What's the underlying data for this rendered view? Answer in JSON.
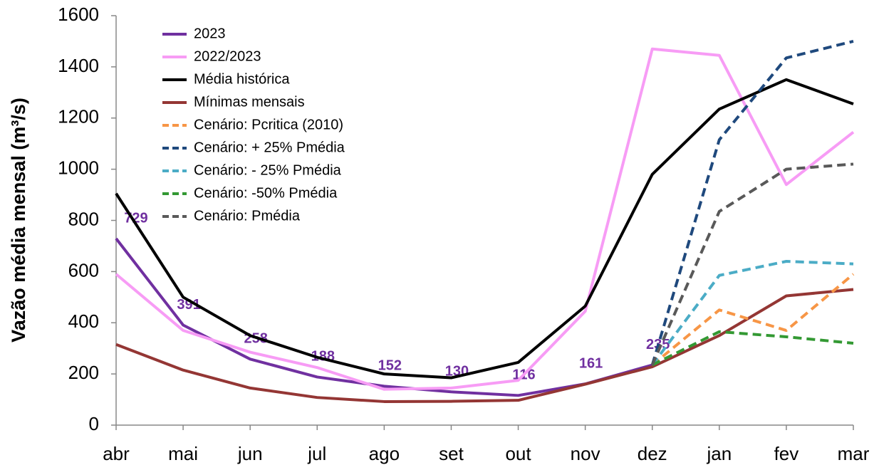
{
  "chart_data": {
    "type": "line",
    "y_label": "Vazão média mensal (m³/s)",
    "categories": [
      "abr",
      "mai",
      "jun",
      "jul",
      "ago",
      "set",
      "out",
      "nov",
      "dez",
      "jan",
      "fev",
      "mar"
    ],
    "ylim": [
      0,
      1600
    ],
    "yticks": [
      0,
      200,
      400,
      600,
      800,
      1000,
      1200,
      1400,
      1600
    ],
    "grid": false,
    "legend": "top-left",
    "series": [
      {
        "name": "2023",
        "color": "#7030a0",
        "style": "solid",
        "data_labels": true,
        "values": [
          729,
          391,
          258,
          188,
          152,
          130,
          116,
          161,
          235,
          null,
          null,
          null
        ]
      },
      {
        "name": "2022/2023",
        "color": "#f79cf5",
        "style": "solid",
        "values": [
          590,
          370,
          285,
          225,
          140,
          145,
          175,
          445,
          1470,
          1445,
          940,
          1145
        ]
      },
      {
        "name": "Média histórica",
        "color": "#000000",
        "style": "solid",
        "values": [
          905,
          500,
          350,
          265,
          200,
          185,
          245,
          465,
          980,
          1235,
          1350,
          1255
        ]
      },
      {
        "name": "Mínimas mensais",
        "color": "#943634",
        "style": "solid",
        "values": [
          315,
          215,
          145,
          108,
          92,
          93,
          97,
          160,
          228,
          350,
          505,
          530
        ]
      },
      {
        "name": "Cenário: Pcritica (2010)",
        "color": "#f79646",
        "style": "dashed",
        "values": [
          null,
          null,
          null,
          null,
          null,
          null,
          null,
          null,
          235,
          450,
          370,
          590
        ]
      },
      {
        "name": "Cenário: + 25% Pmédia",
        "color": "#1f497d",
        "style": "dashed",
        "values": [
          null,
          null,
          null,
          null,
          null,
          null,
          null,
          null,
          235,
          1115,
          1435,
          1500
        ]
      },
      {
        "name": "Cenário: - 25% Pmédia",
        "color": "#4bacc6",
        "style": "dashed",
        "values": [
          null,
          null,
          null,
          null,
          null,
          null,
          null,
          null,
          235,
          585,
          640,
          630
        ]
      },
      {
        "name": "Cenário: -50% Pmédia",
        "color": "#339933",
        "style": "dashed",
        "values": [
          null,
          null,
          null,
          null,
          null,
          null,
          null,
          null,
          235,
          365,
          345,
          320
        ]
      },
      {
        "name": "Cenário: Pmédia",
        "color": "#595959",
        "style": "dashed",
        "values": [
          null,
          null,
          null,
          null,
          null,
          null,
          null,
          null,
          235,
          835,
          1000,
          1020
        ]
      }
    ]
  }
}
